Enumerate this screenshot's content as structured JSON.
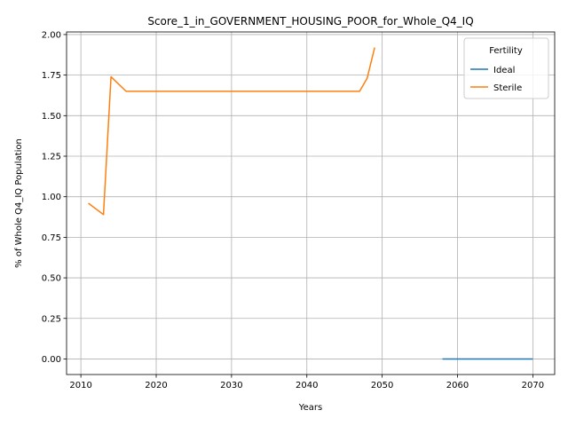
{
  "chart_data": {
    "type": "line",
    "title": "Score_1_in_GOVERNMENT_HOUSING_POOR_for_Whole_Q4_IQ",
    "xlabel": "Years",
    "ylabel": "% of Whole Q4_IQ Population",
    "xlim": [
      2008.1,
      2072.9
    ],
    "ylim": [
      -0.096,
      2.016
    ],
    "xticks": [
      2010,
      2020,
      2030,
      2040,
      2050,
      2060,
      2070
    ],
    "yticks": [
      0.0,
      0.25,
      0.5,
      0.75,
      1.0,
      1.25,
      1.5,
      1.75,
      2.0
    ],
    "xtick_labels": [
      "2010",
      "2020",
      "2030",
      "2040",
      "2050",
      "2060",
      "2070"
    ],
    "ytick_labels": [
      "0.00",
      "0.25",
      "0.50",
      "0.75",
      "1.00",
      "1.25",
      "1.50",
      "1.75",
      "2.00"
    ],
    "grid": true,
    "legend": {
      "title": "Fertility",
      "placement": "top-right"
    },
    "series": [
      {
        "name": "Ideal",
        "color": "#1f77b4",
        "x": [
          2058,
          2070
        ],
        "y": [
          0.0,
          0.0
        ]
      },
      {
        "name": "Sterile",
        "color": "#ff7f0e",
        "x": [
          2011,
          2013,
          2014,
          2016,
          2020,
          2030,
          2040,
          2047,
          2048,
          2049
        ],
        "y": [
          0.96,
          0.89,
          1.74,
          1.65,
          1.65,
          1.65,
          1.65,
          1.65,
          1.73,
          1.92
        ]
      }
    ]
  }
}
